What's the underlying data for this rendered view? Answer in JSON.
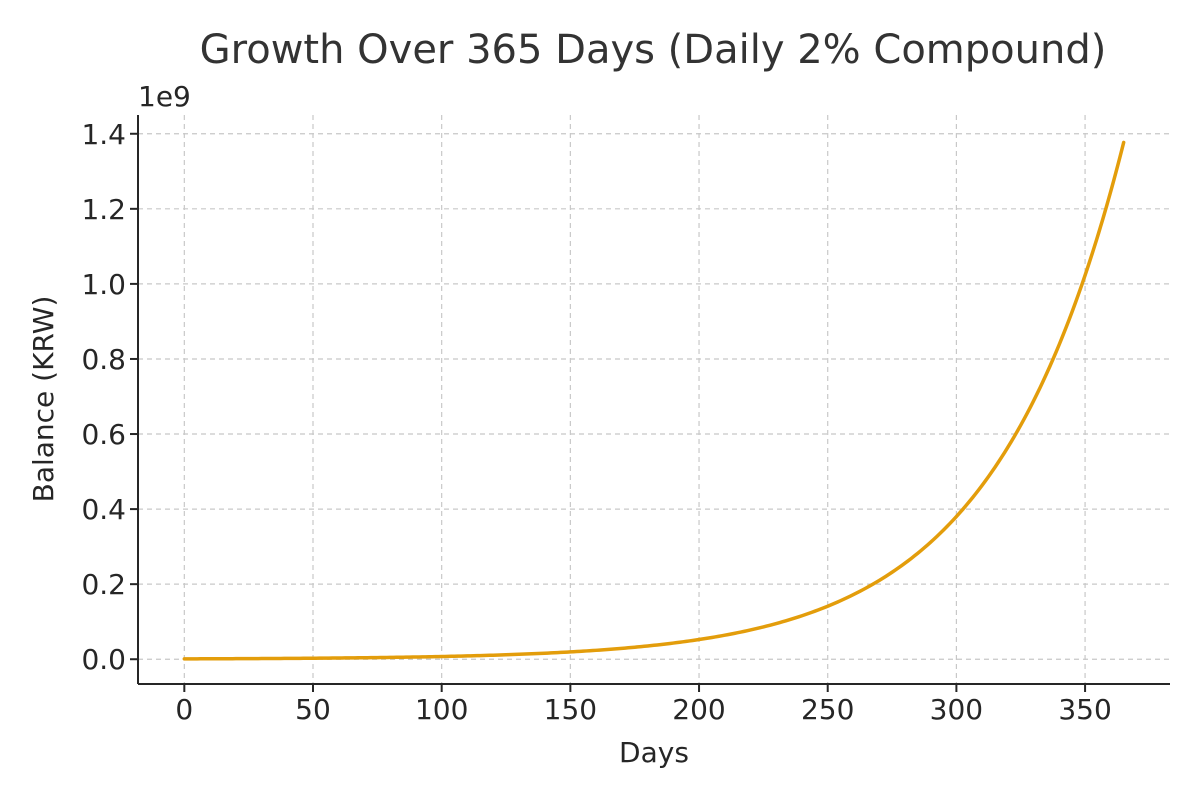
{
  "chart_data": {
    "type": "line",
    "title": "Growth Over 365 Days (Daily 2% Compound)",
    "xlabel": "Days",
    "ylabel": "Balance (KRW)",
    "y_offset_label": "1e9",
    "xlim": [
      -18,
      383
    ],
    "ylim": [
      -0.066,
      1.45
    ],
    "y_unit_multiplier": 1000000000,
    "x_ticks": [
      0,
      50,
      100,
      150,
      200,
      250,
      300,
      350
    ],
    "x_tick_labels": [
      "0",
      "50",
      "100",
      "150",
      "200",
      "250",
      "300",
      "350"
    ],
    "y_ticks": [
      0.0,
      0.2,
      0.4,
      0.6,
      0.8,
      1.0,
      1.2,
      1.4
    ],
    "y_tick_labels": [
      "0.0",
      "0.2",
      "0.4",
      "0.6",
      "0.8",
      "1.0",
      "1.2",
      "1.4"
    ],
    "grid": true,
    "legend": "none",
    "series": [
      {
        "color": "#E39D0B",
        "x": [
          0,
          25,
          50,
          75,
          100,
          125,
          150,
          175,
          200,
          225,
          250,
          275,
          300,
          325,
          350,
          365
        ],
        "y": [
          0.001,
          0.0016,
          0.0027,
          0.0044,
          0.0072,
          0.0119,
          0.0195,
          0.032,
          0.0525,
          0.0861,
          0.1413,
          0.2317,
          0.3802,
          0.6236,
          1.023,
          1.377
        ]
      }
    ]
  }
}
